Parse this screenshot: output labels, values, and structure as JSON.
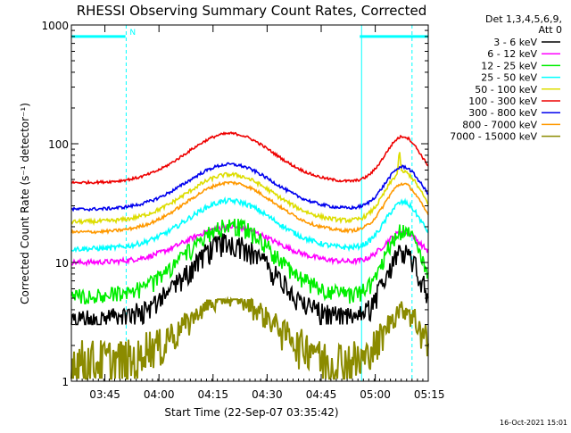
{
  "chart_data": {
    "type": "line",
    "title": "RHESSI Observing Summary Count Rates, Corrected",
    "ylabel": "Corrected Count Rate (s⁻¹ detector⁻¹)",
    "xlabel": "Start Time (22-Sep-07 03:35:42)",
    "yscale": "log",
    "ylim": [
      1,
      1000
    ],
    "xlim_minutes": [
      0,
      99
    ],
    "y_ticks": [
      {
        "value": 1,
        "label": "1"
      },
      {
        "value": 10,
        "label": "10"
      },
      {
        "value": 100,
        "label": "100"
      },
      {
        "value": 1000,
        "label": "1000"
      }
    ],
    "x_ticks": [
      {
        "minute": 9.3,
        "label": "03:45"
      },
      {
        "minute": 24.3,
        "label": "04:00"
      },
      {
        "minute": 39.3,
        "label": "04:15"
      },
      {
        "minute": 54.3,
        "label": "04:30"
      },
      {
        "minute": 69.3,
        "label": "04:45"
      },
      {
        "minute": 84.3,
        "label": "05:00"
      },
      {
        "minute": 99.3,
        "label": "05:15"
      }
    ],
    "x_time_labels": [
      "03:45",
      "04:00",
      "04:15",
      "04:30",
      "04:45",
      "05:00",
      "05:15"
    ],
    "legend_header": [
      "Det 1,3,4,5,6,9,",
      "Att 0"
    ],
    "series": [
      {
        "name": "3 - 6 keV",
        "color": "#000000",
        "base": 3.5,
        "peak1": 16,
        "peak2": 14,
        "wiggle": 0.12,
        "floor": 3.0
      },
      {
        "name": "6 - 12 keV",
        "color": "#ff00ff",
        "base": 10,
        "peak1": 20,
        "peak2": 18,
        "wiggle": 0.05,
        "floor": 0
      },
      {
        "name": "12 - 25 keV",
        "color": "#00ee00",
        "base": 5.5,
        "peak1": 22,
        "peak2": 20,
        "wiggle": 0.09,
        "floor": 4.5
      },
      {
        "name": "25 - 50 keV",
        "color": "#00ffff",
        "base": 13,
        "peak1": 33,
        "peak2": 32,
        "wiggle": 0.05,
        "floor": 0
      },
      {
        "name": "50 - 100 keV",
        "color": "#dddd00",
        "base": 22,
        "peak1": 55,
        "peak2": 58,
        "wiggle": 0.04,
        "floor": 0
      },
      {
        "name": "100 - 300 keV",
        "color": "#ee0000",
        "base": 47,
        "peak1": 122,
        "peak2": 115,
        "wiggle": 0.025,
        "floor": 0
      },
      {
        "name": "300 - 800 keV",
        "color": "#0000ee",
        "base": 28,
        "peak1": 67,
        "peak2": 64,
        "wiggle": 0.03,
        "floor": 0
      },
      {
        "name": "800 - 7000 keV",
        "color": "#ff9900",
        "base": 18,
        "peak1": 47,
        "peak2": 46,
        "wiggle": 0.03,
        "floor": 0
      },
      {
        "name": "7000 - 15000 keV",
        "color": "#8b8b00",
        "base": 1.5,
        "peak1": 5,
        "peak2": 4,
        "wiggle": 0.0,
        "floor": 0
      }
    ],
    "curve_shape": {
      "peak1_center_min": 44,
      "peak1_width_min": 17,
      "peak2_center_min": 92,
      "peak2_width_min": 7,
      "spike_min": 91,
      "spike_series": "50 - 100 keV",
      "spike_value": 90
    },
    "annotations": {
      "marker_label": "N",
      "saturation_level": 800,
      "saturation_segments_min": [
        [
          0,
          15
        ],
        [
          80,
          99
        ]
      ],
      "night_boundaries_min": [
        15.2,
        80.5,
        94.5
      ],
      "solid_boundaries_min": [
        80.5
      ]
    }
  },
  "footer": {
    "timestamp": "16-Oct-2021 15:01"
  },
  "colors": {
    "axes": "#000000",
    "background": "#ffffff",
    "annotation": "#00ffff"
  }
}
